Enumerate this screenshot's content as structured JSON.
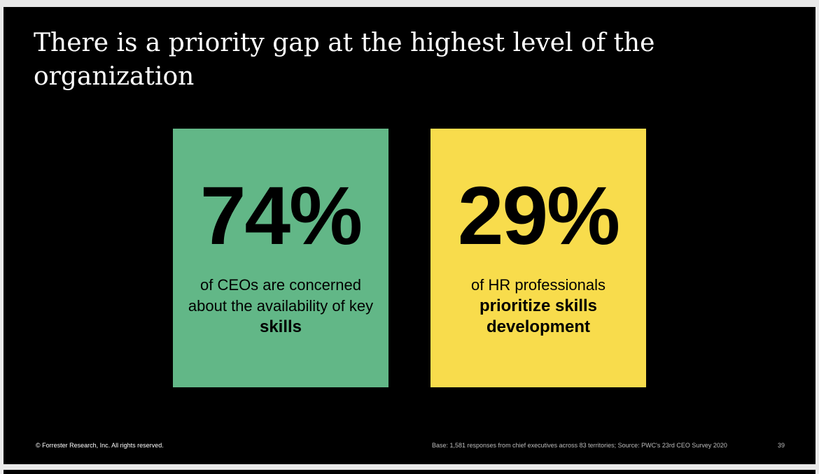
{
  "slide": {
    "title": "There is a priority gap at the highest level of the organization",
    "cards": [
      {
        "stat": "74%",
        "desc_regular": "of CEOs are concerned about the availability of key",
        "desc_bold": "skills",
        "color": "#62b787"
      },
      {
        "stat": "29%",
        "desc_regular": "of HR professionals",
        "desc_bold": "prioritize skills development",
        "color": "#f8dc4c"
      }
    ],
    "footer": {
      "copyright": "© Forrester Research, Inc. All rights reserved.",
      "source": "Base: 1,581 responses from chief executives across 83 territories; Source: PWC's 23rd CEO Survey 2020",
      "page_number": "39"
    }
  }
}
